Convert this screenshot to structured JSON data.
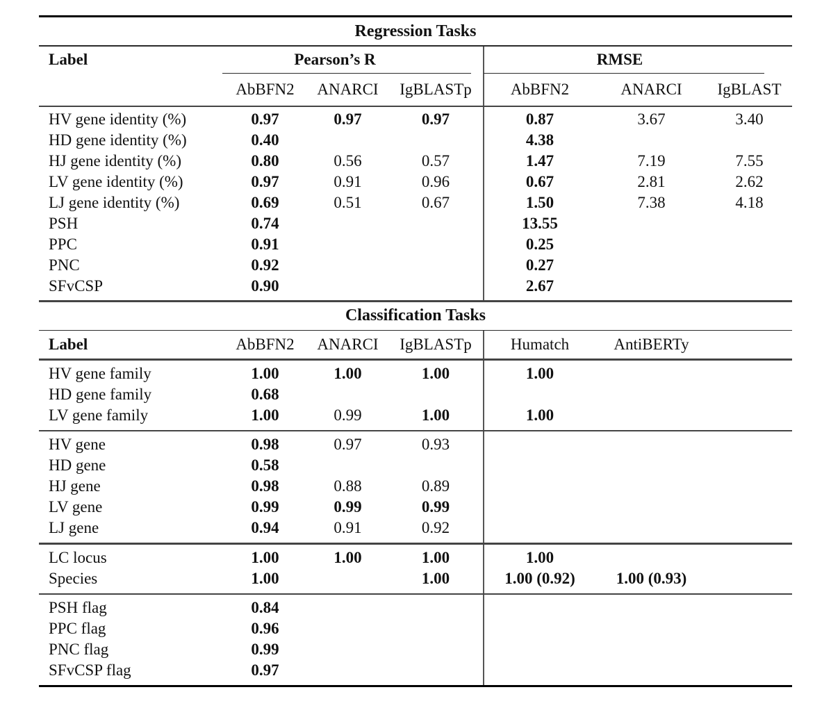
{
  "regression": {
    "title": "Regression Tasks",
    "label_header": "Label",
    "group_headers": {
      "pearson": "Pearson’s R",
      "rmse": "RMSE"
    },
    "subheaders": [
      "AbBFN2",
      "ANARCI",
      "IgBLASTp",
      "AbBFN2",
      "ANARCI",
      "IgBLAST"
    ],
    "rows": [
      {
        "label": "HV gene identity (%)",
        "cells": [
          {
            "v": "0.97",
            "b": true
          },
          {
            "v": "0.97",
            "b": true
          },
          {
            "v": "0.97",
            "b": true
          },
          {
            "v": "0.87",
            "b": true
          },
          {
            "v": "3.67",
            "b": false
          },
          {
            "v": "3.40",
            "b": false
          }
        ]
      },
      {
        "label": "HD gene identity (%)",
        "cells": [
          {
            "v": "0.40",
            "b": true
          },
          null,
          null,
          {
            "v": "4.38",
            "b": true
          },
          null,
          null
        ]
      },
      {
        "label": "HJ gene identity (%)",
        "cells": [
          {
            "v": "0.80",
            "b": true
          },
          {
            "v": "0.56",
            "b": false
          },
          {
            "v": "0.57",
            "b": false
          },
          {
            "v": "1.47",
            "b": true
          },
          {
            "v": "7.19",
            "b": false
          },
          {
            "v": "7.55",
            "b": false
          }
        ]
      },
      {
        "label": "LV gene identity (%)",
        "cells": [
          {
            "v": "0.97",
            "b": true
          },
          {
            "v": "0.91",
            "b": false
          },
          {
            "v": "0.96",
            "b": false
          },
          {
            "v": "0.67",
            "b": true
          },
          {
            "v": "2.81",
            "b": false
          },
          {
            "v": "2.62",
            "b": false
          }
        ]
      },
      {
        "label": "LJ gene identity (%)",
        "cells": [
          {
            "v": "0.69",
            "b": true
          },
          {
            "v": "0.51",
            "b": false
          },
          {
            "v": "0.67",
            "b": false
          },
          {
            "v": "1.50",
            "b": true
          },
          {
            "v": "7.38",
            "b": false
          },
          {
            "v": "4.18",
            "b": false
          }
        ]
      },
      {
        "label": "PSH",
        "cells": [
          {
            "v": "0.74",
            "b": true
          },
          null,
          null,
          {
            "v": "13.55",
            "b": true
          },
          null,
          null
        ]
      },
      {
        "label": "PPC",
        "cells": [
          {
            "v": "0.91",
            "b": true
          },
          null,
          null,
          {
            "v": "0.25",
            "b": true
          },
          null,
          null
        ]
      },
      {
        "label": "PNC",
        "cells": [
          {
            "v": "0.92",
            "b": true
          },
          null,
          null,
          {
            "v": "0.27",
            "b": true
          },
          null,
          null
        ]
      },
      {
        "label": "SFvCSP",
        "cells": [
          {
            "v": "0.90",
            "b": true
          },
          null,
          null,
          {
            "v": "2.67",
            "b": true
          },
          null,
          null
        ]
      }
    ]
  },
  "classification": {
    "title": "Classification Tasks",
    "label_header": "Label",
    "columns": [
      "AbBFN2",
      "ANARCI",
      "IgBLASTp",
      "Humatch",
      "AntiBERTy"
    ],
    "groups": [
      [
        {
          "label": "HV gene family",
          "cells": [
            {
              "v": "1.00",
              "b": true
            },
            {
              "v": "1.00",
              "b": true
            },
            {
              "v": "1.00",
              "b": true
            },
            {
              "v": "1.00",
              "b": true
            },
            null
          ]
        },
        {
          "label": "HD gene family",
          "cells": [
            {
              "v": "0.68",
              "b": true
            },
            null,
            null,
            null,
            null
          ]
        },
        {
          "label": "LV gene family",
          "cells": [
            {
              "v": "1.00",
              "b": true
            },
            {
              "v": "0.99",
              "b": false
            },
            {
              "v": "1.00",
              "b": true
            },
            {
              "v": "1.00",
              "b": true
            },
            null
          ]
        }
      ],
      [
        {
          "label": "HV gene",
          "cells": [
            {
              "v": "0.98",
              "b": true
            },
            {
              "v": "0.97",
              "b": false
            },
            {
              "v": "0.93",
              "b": false
            },
            null,
            null
          ]
        },
        {
          "label": "HD gene",
          "cells": [
            {
              "v": "0.58",
              "b": true
            },
            null,
            null,
            null,
            null
          ]
        },
        {
          "label": "HJ gene",
          "cells": [
            {
              "v": "0.98",
              "b": true
            },
            {
              "v": "0.88",
              "b": false
            },
            {
              "v": "0.89",
              "b": false
            },
            null,
            null
          ]
        },
        {
          "label": "LV gene",
          "cells": [
            {
              "v": "0.99",
              "b": true
            },
            {
              "v": "0.99",
              "b": true
            },
            {
              "v": "0.99",
              "b": true
            },
            null,
            null
          ]
        },
        {
          "label": "LJ gene",
          "cells": [
            {
              "v": "0.94",
              "b": true
            },
            {
              "v": "0.91",
              "b": false
            },
            {
              "v": "0.92",
              "b": false
            },
            null,
            null
          ]
        }
      ],
      [
        {
          "label": "LC locus",
          "cells": [
            {
              "v": "1.00",
              "b": true
            },
            {
              "v": "1.00",
              "b": true
            },
            {
              "v": "1.00",
              "b": true
            },
            {
              "v": "1.00",
              "b": true
            },
            null
          ]
        },
        {
          "label": "Species",
          "cells": [
            {
              "v": "1.00",
              "b": true
            },
            null,
            {
              "v": "1.00",
              "b": true
            },
            {
              "v": "1.00 (0.92)",
              "b": true
            },
            {
              "v": "1.00 (0.93)",
              "b": true
            }
          ]
        }
      ],
      [
        {
          "label": "PSH flag",
          "cells": [
            {
              "v": "0.84",
              "b": true
            },
            null,
            null,
            null,
            null
          ]
        },
        {
          "label": "PPC flag",
          "cells": [
            {
              "v": "0.96",
              "b": true
            },
            null,
            null,
            null,
            null
          ]
        },
        {
          "label": "PNC flag",
          "cells": [
            {
              "v": "0.99",
              "b": true
            },
            null,
            null,
            null,
            null
          ]
        },
        {
          "label": "SFvCSP flag",
          "cells": [
            {
              "v": "0.97",
              "b": true
            },
            null,
            null,
            null,
            null
          ]
        }
      ]
    ]
  }
}
